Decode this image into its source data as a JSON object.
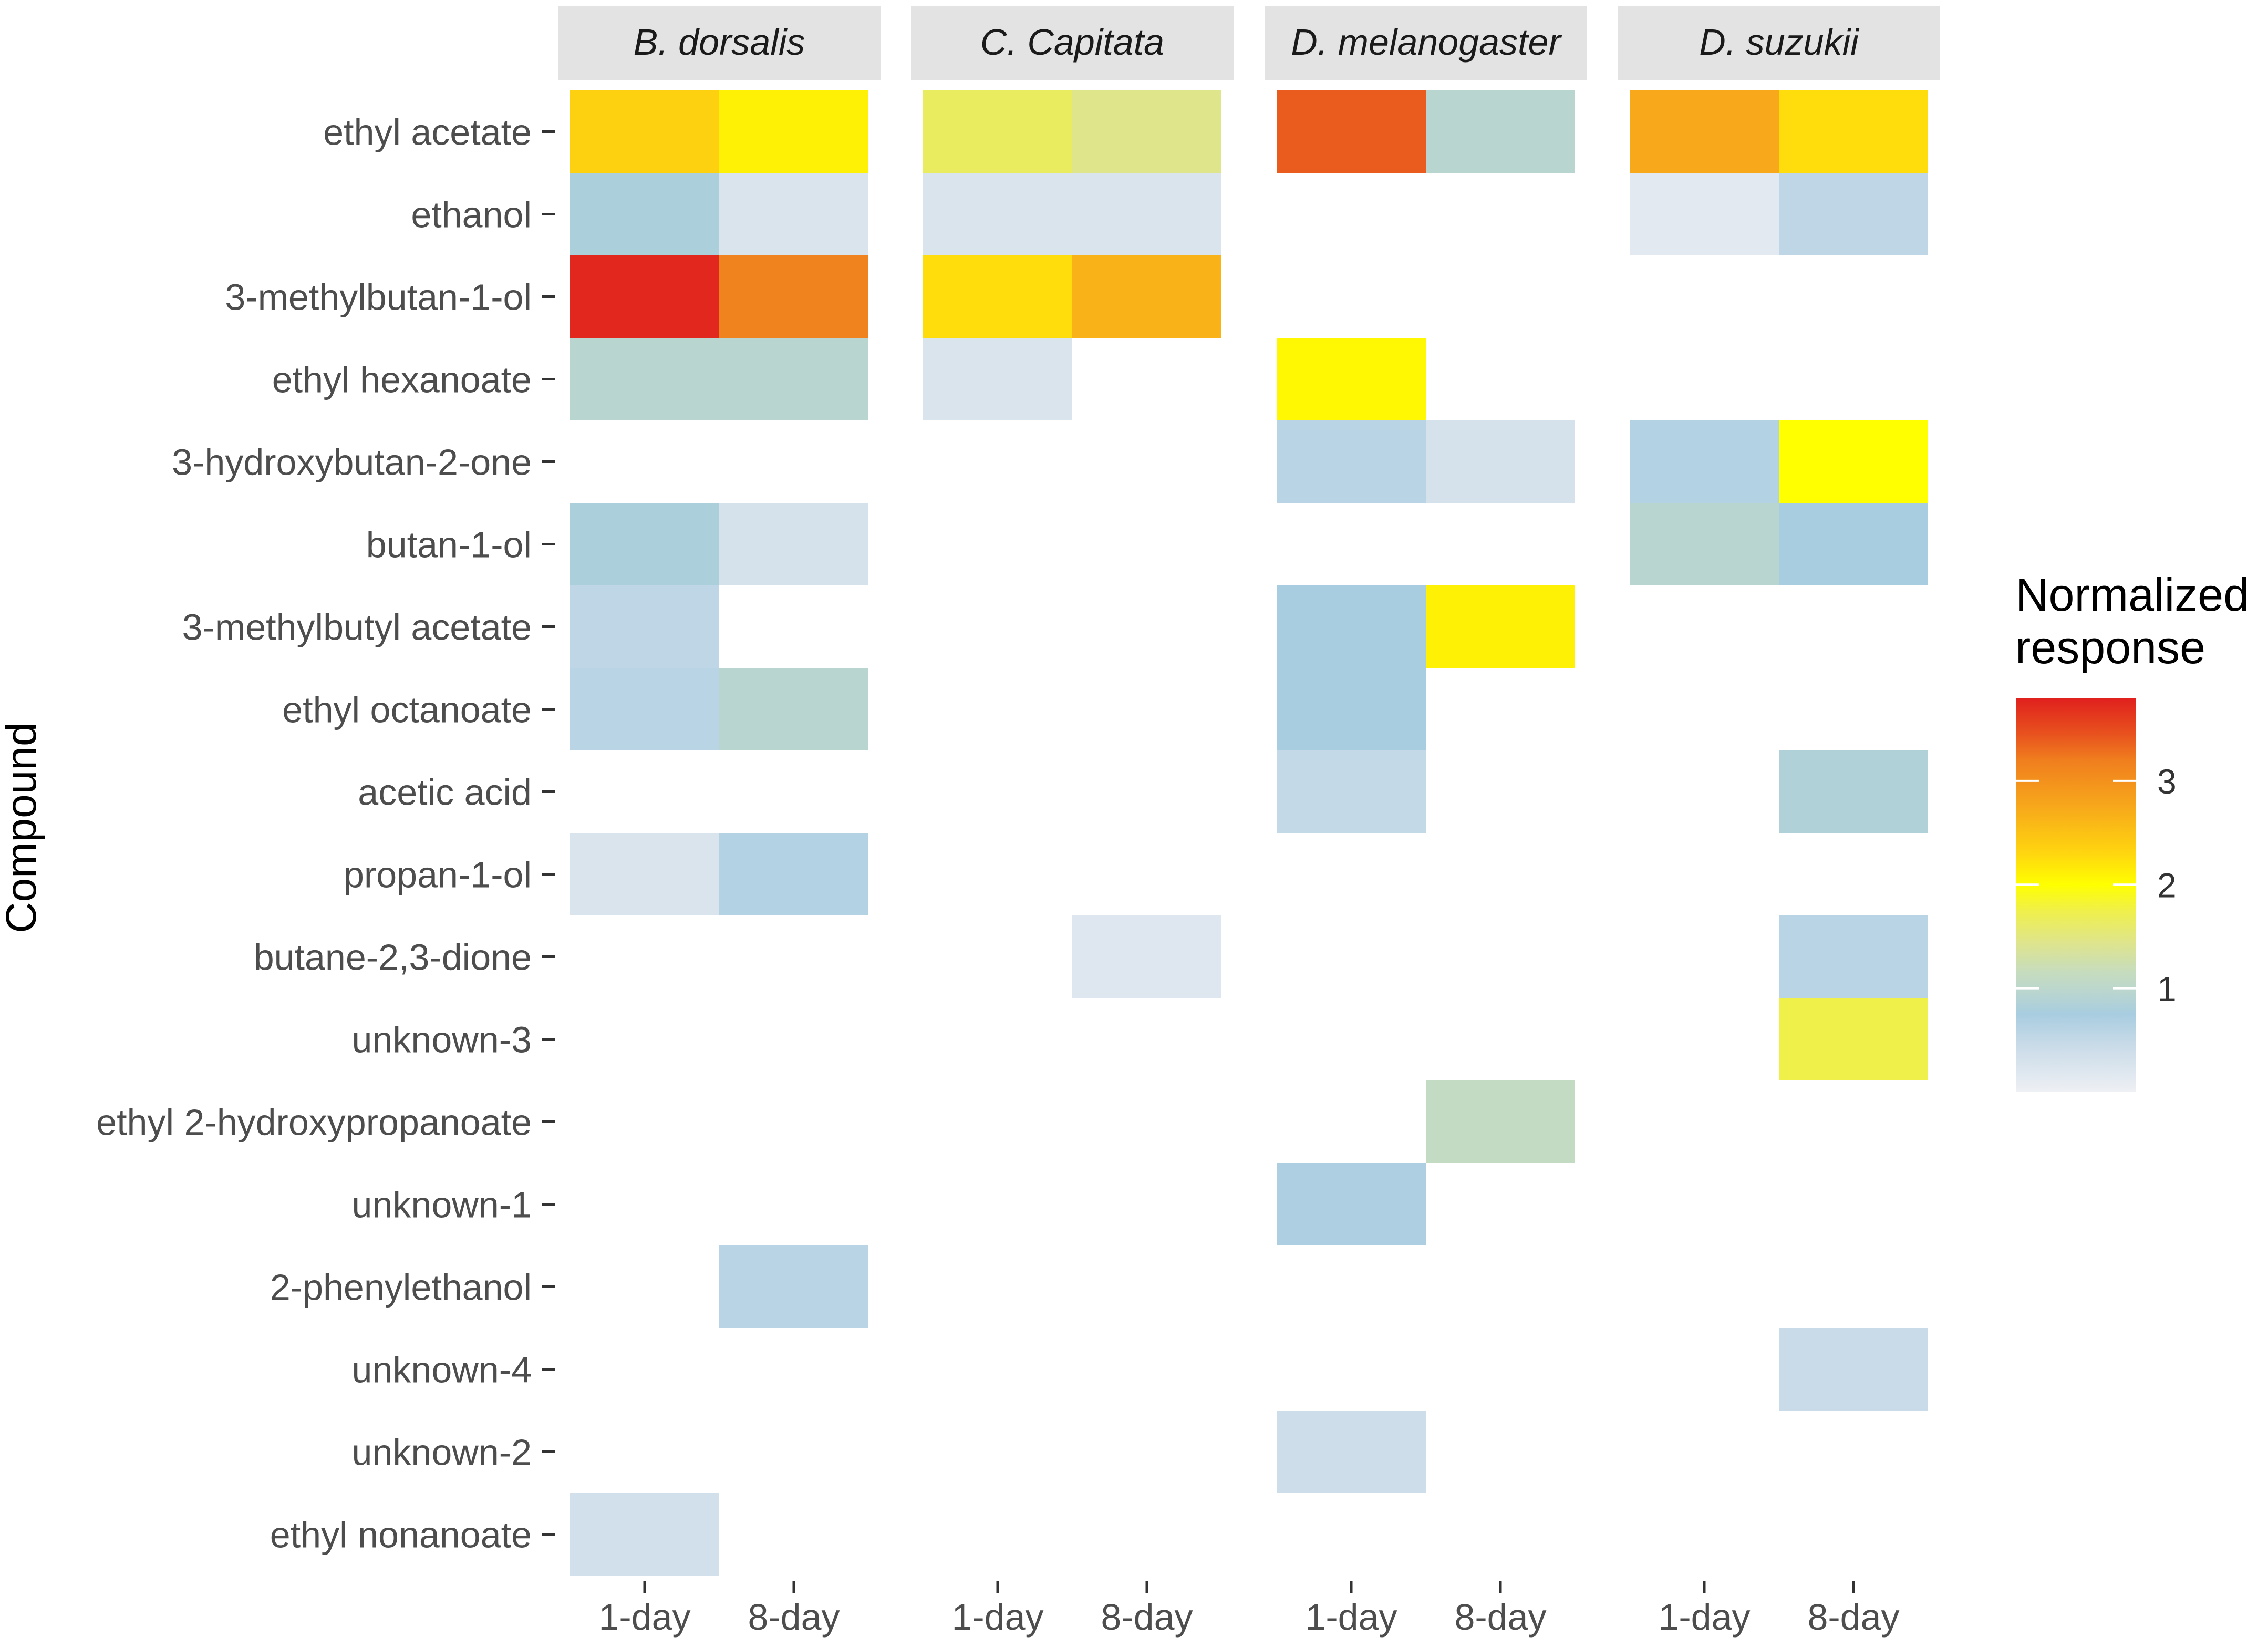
{
  "chart_data": {
    "type": "heatmap",
    "ylabel": "Compound",
    "xlabel": "",
    "panels": [
      "B. dorsalis",
      "C. Capitata",
      "D. melanogaster",
      "D. suzukii"
    ],
    "x_categories": [
      "1-day",
      "8-day"
    ],
    "compounds": [
      "ethyl acetate",
      "ethanol",
      "3-methylbutan-1-ol",
      "ethyl hexanoate",
      "3-hydroxybutan-2-one",
      "butan-1-ol",
      "3-methylbutyl acetate",
      "ethyl octanoate",
      "acetic acid",
      "propan-1-ol",
      "butane-2,3-dione",
      "unknown-3",
      "ethyl 2-hydroxypropanoate",
      "unknown-1",
      "2-phenylethanol",
      "unknown-4",
      "unknown-2",
      "ethyl nonanoate"
    ],
    "values": {
      "B. dorsalis": [
        [
          2.35,
          2.1
        ],
        [
          0.8,
          0.25
        ],
        [
          3.75,
          3.15
        ],
        [
          0.95,
          0.95
        ],
        [
          null,
          null
        ],
        [
          0.8,
          0.3
        ],
        [
          0.55,
          null
        ],
        [
          0.6,
          0.95
        ],
        [
          null,
          null
        ],
        [
          0.25,
          0.65
        ],
        [
          null,
          null
        ],
        [
          null,
          null
        ],
        [
          null,
          null
        ],
        [
          null,
          null
        ],
        [
          null,
          0.6
        ],
        [
          null,
          null
        ],
        [
          null,
          null
        ],
        [
          0.35,
          null
        ]
      ],
      "C. Capitata": [
        [
          1.65,
          1.45
        ],
        [
          0.25,
          0.25
        ],
        [
          2.25,
          2.65
        ],
        [
          0.25,
          null
        ],
        [
          null,
          null
        ],
        [
          null,
          null
        ],
        [
          null,
          null
        ],
        [
          null,
          null
        ],
        [
          null,
          null
        ],
        [
          null,
          null
        ],
        [
          null,
          0.2
        ],
        [
          null,
          null
        ],
        [
          null,
          null
        ],
        [
          null,
          null
        ],
        [
          null,
          null
        ],
        [
          null,
          null
        ],
        [
          null,
          null
        ],
        [
          null,
          null
        ]
      ],
      "D. melanogaster": [
        [
          3.4,
          0.95
        ],
        [
          null,
          null
        ],
        [
          null,
          null
        ],
        [
          2.05,
          null
        ],
        [
          0.6,
          0.3
        ],
        [
          null,
          null
        ],
        [
          0.75,
          2.1
        ],
        [
          0.75,
          null
        ],
        [
          0.5,
          null
        ],
        [
          null,
          null
        ],
        [
          null,
          null
        ],
        [
          null,
          null
        ],
        [
          null,
          1.1
        ],
        [
          0.7,
          null
        ],
        [
          null,
          null
        ],
        [
          null,
          null
        ],
        [
          0.4,
          null
        ],
        [
          null,
          null
        ]
      ],
      "D. suzukii": [
        [
          2.75,
          2.25
        ],
        [
          0.15,
          0.55
        ],
        [
          null,
          null
        ],
        [
          null,
          null
        ],
        [
          0.65,
          2.0
        ],
        [
          0.95,
          0.75
        ],
        [
          null,
          null
        ],
        [
          null,
          null
        ],
        [
          null,
          0.85
        ],
        [
          null,
          null
        ],
        [
          null,
          0.6
        ],
        [
          null,
          1.75
        ],
        [
          null,
          null
        ],
        [
          null,
          null
        ],
        [
          null,
          null
        ],
        [
          null,
          0.45
        ],
        [
          null,
          null
        ],
        [
          null,
          null
        ]
      ]
    },
    "legend": {
      "title": "Normalized response",
      "title_lines": [
        "Normalized",
        "response"
      ],
      "ticks": [
        1,
        2,
        3
      ],
      "tick_labels": [
        "1",
        "2",
        "3"
      ],
      "range": [
        0,
        3.8
      ],
      "colormap": [
        [
          0.0,
          "#eef0f4"
        ],
        [
          0.45,
          "#c9dbe8"
        ],
        [
          0.75,
          "#a8cde0"
        ],
        [
          0.95,
          "#b9d5d0"
        ],
        [
          1.15,
          "#c6dcbf"
        ],
        [
          1.45,
          "#dfe58a"
        ],
        [
          1.75,
          "#f0f04a"
        ],
        [
          2.0,
          "#ffff00"
        ],
        [
          2.3,
          "#ffd60f"
        ],
        [
          2.75,
          "#f7a81b"
        ],
        [
          3.2,
          "#f07e1e"
        ],
        [
          3.45,
          "#e8521e"
        ],
        [
          3.8,
          "#e0201e"
        ]
      ]
    },
    "colors": {
      "strip_bg": "#e3e3e3",
      "text": "#4d4d4d",
      "tick": "#333333"
    }
  }
}
